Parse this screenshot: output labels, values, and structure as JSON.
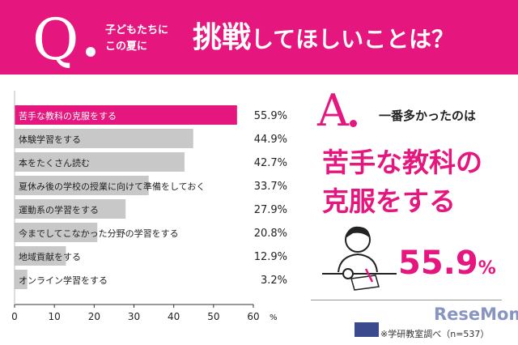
{
  "banner": {
    "q_letter": "Q",
    "pre_line1": "子どもたちに",
    "pre_line2": "この夏に",
    "main_emph": "挑戦",
    "main_rest": "してほしいことは？",
    "color": "#e5177f"
  },
  "answer": {
    "a_letter": "A",
    "intro": "一番多かったのは",
    "line1": "苦手な教科の",
    "line2": "克服をする",
    "value": "55.9",
    "unit": "%"
  },
  "footnote": "※学研教室調べ（n=537）",
  "watermark": "ReseMom",
  "chart_data": {
    "type": "bar",
    "orientation": "horizontal",
    "categories": [
      "苦手な教科の克服をする",
      "体験学習をする",
      "本をたくさん読む",
      "夏休み後の学校の授業に向けて準備をしておく",
      "運動系の学習をする",
      "今までしてこなかった分野の学習をする",
      "地域貢献をする",
      "オンライン学習をする"
    ],
    "values": [
      55.9,
      44.9,
      42.7,
      33.7,
      27.9,
      20.8,
      12.9,
      3.2
    ],
    "value_labels": [
      "55.9%",
      "44.9%",
      "42.7%",
      "33.7%",
      "27.9%",
      "20.8%",
      "12.9%",
      "3.2%"
    ],
    "xlim": [
      0,
      60
    ],
    "xticks": [
      "0",
      "10",
      "20",
      "30",
      "40",
      "50",
      "60"
    ],
    "x_unit": "%",
    "highlight_color": "#e5177f",
    "bar_color": "#c8c8c8",
    "grid": false
  }
}
